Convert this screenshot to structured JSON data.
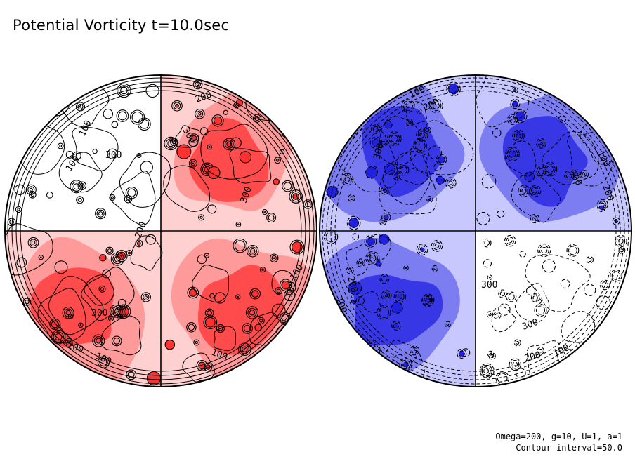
{
  "title": "Potential Vorticity  t=10.0sec",
  "footer": {
    "params": "Omega=200, g=10, U=1, a=1",
    "interval": "Contour interval=50.0"
  },
  "colors": {
    "positive_light": "#ffd0d0",
    "positive_mid": "#ff9090",
    "positive_strong": "#ff3030",
    "negative_light": "#c8c8ff",
    "negative_mid": "#7070f0",
    "negative_strong": "#2020e0",
    "background": "#ffffff",
    "contour": "#000000"
  },
  "chart_data": {
    "type": "heatmap",
    "title": "Potential Vorticity  t=10.0sec",
    "projection": "two hemispheres (orthographic)",
    "contour_interval": 50.0,
    "contour_style": "solid lines for positive values, dashed lines for negative values",
    "hemispheres": [
      {
        "id": "left",
        "sign": "positive",
        "quadrant_fill": {
          "top-left": "white",
          "top-right": "red",
          "bottom-left": "red",
          "bottom-right": "red"
        },
        "contour_labels": [
          "200",
          "100",
          "100",
          "300",
          "100",
          "200",
          "100",
          "300",
          "300",
          "100",
          "100",
          "200",
          "300"
        ]
      },
      {
        "id": "right",
        "sign": "negative",
        "quadrant_fill": {
          "top-left": "blue",
          "top-right": "blue",
          "bottom-left": "blue",
          "bottom-right": "white"
        },
        "contour_labels": [
          "100",
          "200",
          "300",
          "100",
          "200",
          "300",
          "200",
          "100",
          "300",
          "200",
          "100",
          "300"
        ]
      }
    ]
  }
}
